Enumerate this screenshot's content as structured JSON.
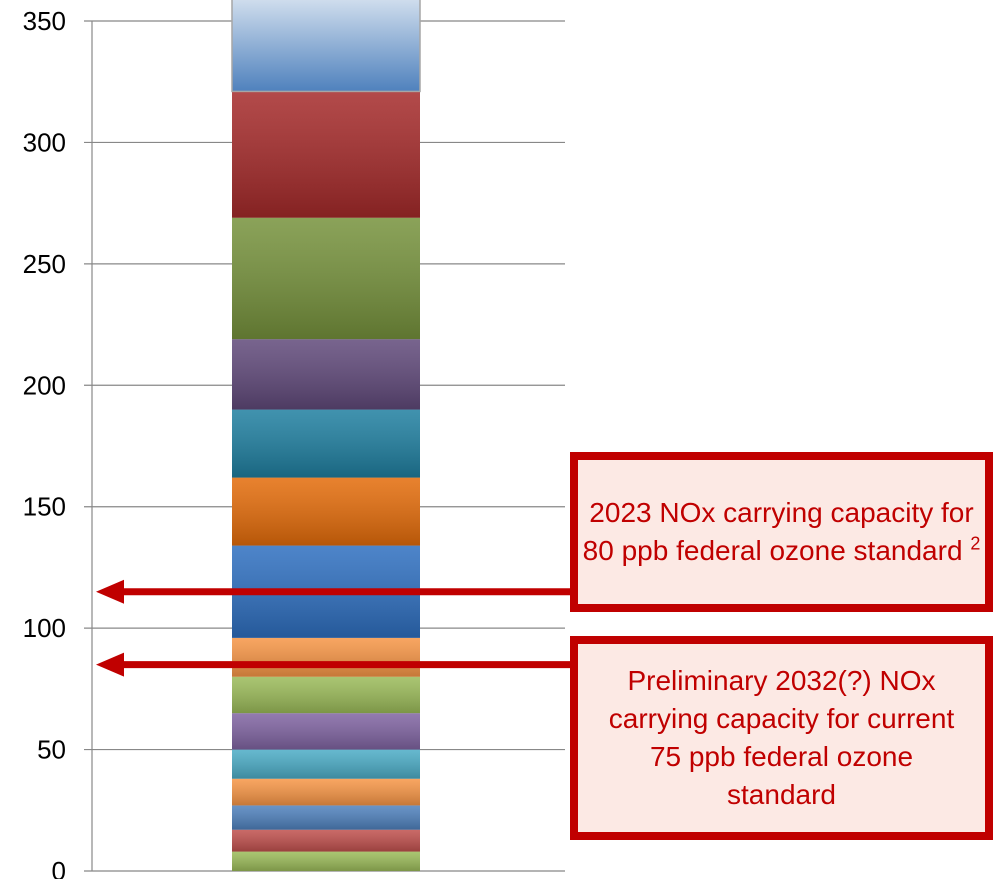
{
  "chart_data": {
    "type": "bar",
    "stacked": true,
    "ylim": [
      0,
      350
    ],
    "yticks": [
      "0",
      "50",
      "100",
      "150",
      "200",
      "250",
      "300",
      "350"
    ],
    "grid": true,
    "segments": [
      {
        "value": 8,
        "color": "#9bbb59"
      },
      {
        "value": 9,
        "color": "#c0504d"
      },
      {
        "value": 10,
        "color": "#4f81bd"
      },
      {
        "value": 11,
        "color": "#f79646"
      },
      {
        "value": 12,
        "color": "#4bacc6"
      },
      {
        "value": 15,
        "color": "#8064a2"
      },
      {
        "value": 15,
        "color": "#9bbb59"
      },
      {
        "value": 16,
        "color": "#f79646"
      },
      {
        "value": 38,
        "color": "#2e6fc0"
      },
      {
        "value": 28,
        "color": "#e46c0a"
      },
      {
        "value": 28,
        "color": "#1f7fa0"
      },
      {
        "value": 29,
        "color": "#60497a"
      },
      {
        "value": 50,
        "color": "#76923c"
      },
      {
        "value": 52,
        "color": "#a52a2a"
      },
      {
        "value": 52,
        "color": "#4f81bd",
        "fade": true
      }
    ],
    "reference_lines": [
      {
        "value": 115,
        "color": "#c00000"
      },
      {
        "value": 85,
        "color": "#c00000"
      }
    ]
  },
  "annotations": {
    "callout_1": {
      "text": "2023  NOx carrying capacity for 80 ppb federal ozone standard",
      "superscript": "2"
    },
    "callout_2": {
      "text": "Preliminary 2032(?) NOx carrying capacity for current 75 ppb federal ozone standard"
    }
  }
}
